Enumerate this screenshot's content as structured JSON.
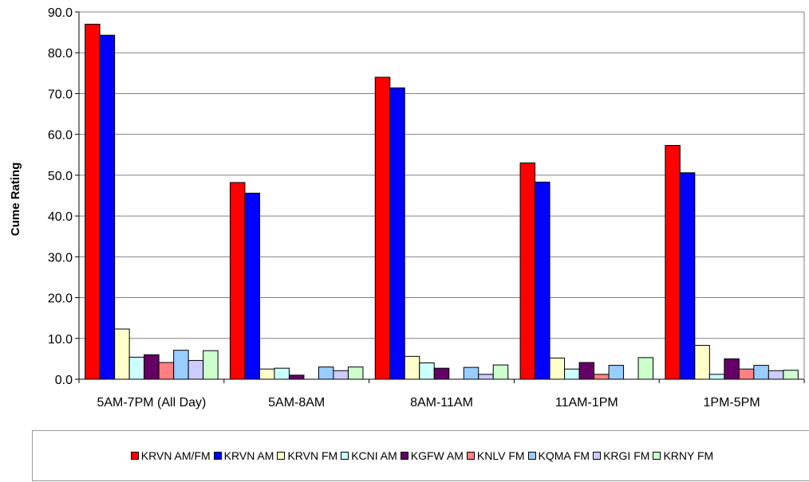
{
  "chart_data": {
    "type": "bar",
    "ylabel": "Cume Rating",
    "xlabel": "",
    "ylim": [
      0,
      90
    ],
    "yticks": [
      "0.0",
      "10.0",
      "20.0",
      "30.0",
      "40.0",
      "50.0",
      "60.0",
      "70.0",
      "80.0",
      "90.0"
    ],
    "grid": true,
    "legend_position": "bottom",
    "categories": [
      "5AM-7PM (All Day)",
      "5AM-8AM",
      "8AM-11AM",
      "11AM-1PM",
      "1PM-5PM"
    ],
    "series": [
      {
        "name": "KRVN AM/FM",
        "color": "#ff0000",
        "values": [
          87.0,
          48.2,
          74.0,
          53.0,
          57.3
        ]
      },
      {
        "name": "KRVN AM",
        "color": "#0000ff",
        "values": [
          84.3,
          45.6,
          71.4,
          48.3,
          50.6
        ]
      },
      {
        "name": "KRVN FM",
        "color": "#ffffcc",
        "values": [
          12.3,
          2.5,
          5.6,
          5.2,
          8.3
        ]
      },
      {
        "name": "KCNI AM",
        "color": "#ccffff",
        "values": [
          5.4,
          2.7,
          4.0,
          2.5,
          1.2
        ]
      },
      {
        "name": "KGFW AM",
        "color": "#660066",
        "values": [
          6.0,
          1.0,
          2.7,
          4.1,
          5.0
        ]
      },
      {
        "name": "KNLV FM",
        "color": "#ff8080",
        "values": [
          4.1,
          0.0,
          0.0,
          1.2,
          2.5
        ]
      },
      {
        "name": "KQMA FM",
        "color": "#99ccff",
        "values": [
          7.1,
          3.0,
          2.9,
          3.4,
          3.4
        ]
      },
      {
        "name": "KRGI FM",
        "color": "#ccccff",
        "values": [
          4.6,
          2.1,
          1.2,
          0.0,
          2.1
        ]
      },
      {
        "name": "KRNY FM",
        "color": "#ccffcc",
        "values": [
          7.0,
          3.0,
          3.5,
          5.3,
          2.2
        ]
      }
    ]
  }
}
